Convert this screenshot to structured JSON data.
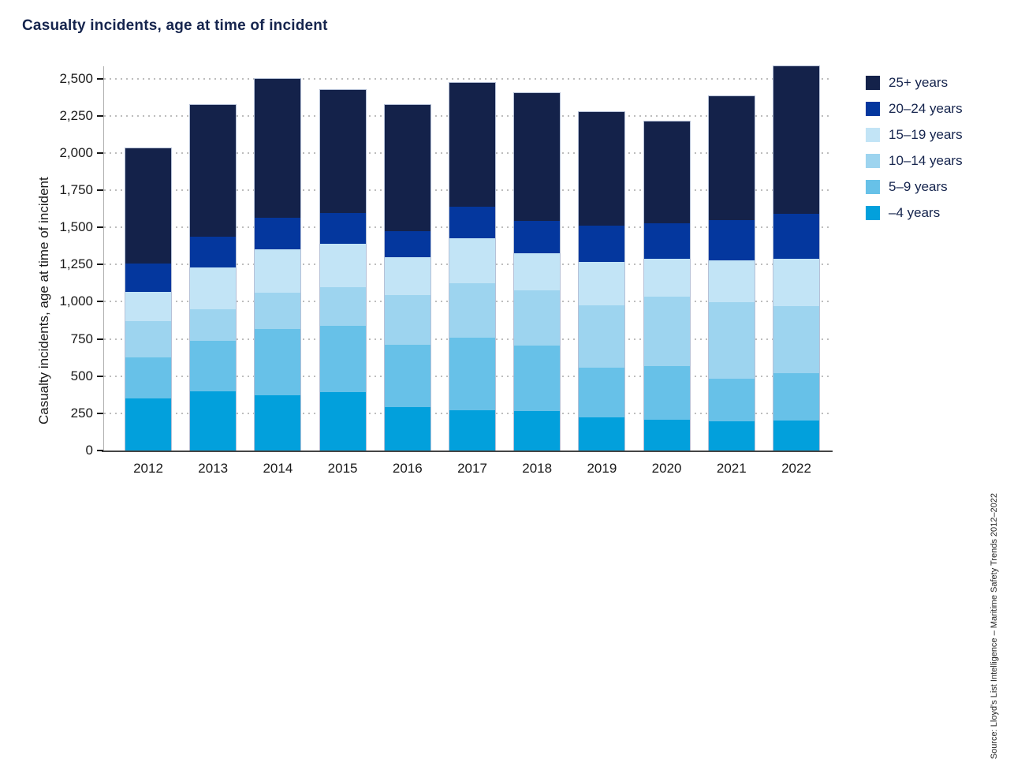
{
  "title": "Casualty incidents, age at time of incident",
  "y_axis": {
    "label": "Casualty incidents, age at time of incident",
    "tick_values": [
      0,
      250,
      500,
      750,
      1000,
      1250,
      1500,
      1750,
      2000,
      2250,
      2500
    ],
    "tick_labels": [
      "0",
      "250",
      "500",
      "750",
      "1,000",
      "1,250",
      "1,500",
      "1,750",
      "2,000",
      "2,250",
      "2,500"
    ]
  },
  "source_note": "Source: Lloyd's List Intelligence – Maritime Safety Trends 2012–2022",
  "palette": {
    "title_text": "#16254E",
    "legend_text": "#16254E",
    "axis_text": "#1a1a1a",
    "gridline": "#bdbdbd",
    "axis_line": "#b0b0b0",
    "baseline": "#454545",
    "bar_outline": "#b6c1d7"
  },
  "chart_data": {
    "type": "bar",
    "stacked": true,
    "title": "Casualty incidents, age at time of incident",
    "xlabel": "",
    "ylabel": "Casualty incidents, age at time of incident",
    "ylim": [
      0,
      2582
    ],
    "grid": "horizontal dotted every 250",
    "legend_position": "right (reverse stacking order, oldest on top)",
    "categories": [
      "2012",
      "2013",
      "2014",
      "2015",
      "2016",
      "2017",
      "2018",
      "2019",
      "2020",
      "2021",
      "2022"
    ],
    "series": [
      {
        "name": "–4 years",
        "color": "#02A0DC",
        "values": [
          350,
          400,
          370,
          390,
          290,
          270,
          265,
          225,
          205,
          195,
          200
        ]
      },
      {
        "name": "5–9 years",
        "color": "#67C1E8",
        "values": [
          275,
          335,
          445,
          450,
          420,
          490,
          440,
          330,
          360,
          290,
          320
        ]
      },
      {
        "name": "10–14 years",
        "color": "#9DD4EF",
        "values": [
          245,
          215,
          245,
          255,
          335,
          365,
          370,
          420,
          470,
          510,
          450
        ]
      },
      {
        "name": "15–19 years",
        "color": "#C2E4F6",
        "values": [
          195,
          280,
          290,
          295,
          255,
          300,
          250,
          295,
          255,
          285,
          320
        ]
      },
      {
        "name": "20–24 years",
        "color": "#04379E",
        "values": [
          190,
          205,
          215,
          205,
          175,
          215,
          220,
          240,
          235,
          270,
          300
        ]
      },
      {
        "name": "25+ years",
        "color": "#14224A",
        "values": [
          775,
          890,
          935,
          830,
          845,
          830,
          855,
          765,
          685,
          830,
          990
        ]
      }
    ],
    "stack_totals": [
      2030,
      2325,
      2500,
      2425,
      2320,
      2470,
      2400,
      2275,
      2210,
      2380,
      2580
    ]
  }
}
